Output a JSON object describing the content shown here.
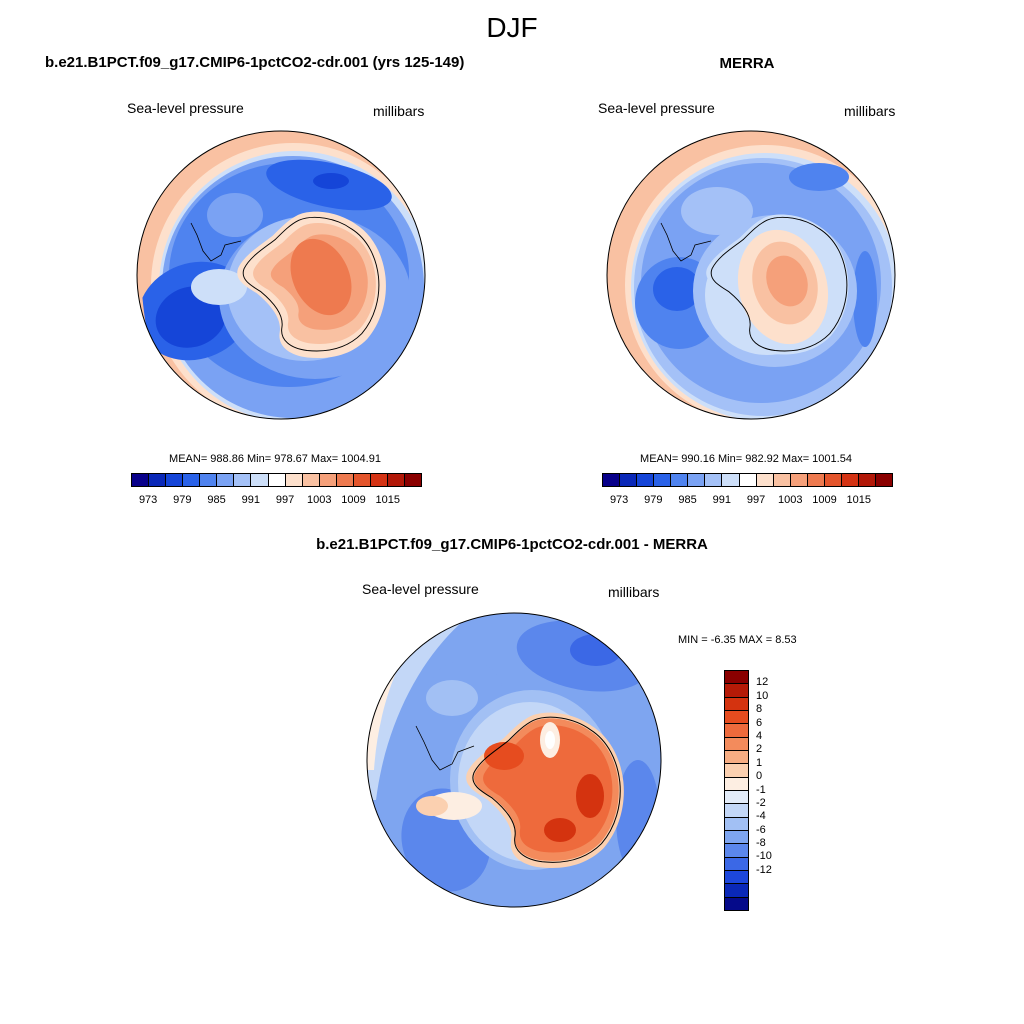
{
  "figure_title": "DJF",
  "colors": {
    "abs_scale": [
      "#08008a",
      "#0a28b8",
      "#1545d8",
      "#2a62e8",
      "#4f83ef",
      "#7aa2f3",
      "#a4c1f7",
      "#cddff9",
      "#ffffff",
      "#fde0cc",
      "#f9c1a2",
      "#f5a07a",
      "#ee7a4f",
      "#e4552c",
      "#d43314",
      "#b21808",
      "#8a0000"
    ],
    "diff_scale": [
      "#8a0000",
      "#b51a07",
      "#d4330f",
      "#e64c1f",
      "#ee6a3c",
      "#f38b5c",
      "#f7ad83",
      "#fbd0b0",
      "#fdeee2",
      "#e3ecf9",
      "#c3d7f7",
      "#a2c0f4",
      "#7ea5f0",
      "#5b87ec",
      "#3b68e6",
      "#1d47dc",
      "#0a28b8",
      "#050a8a"
    ]
  },
  "panels": {
    "model": {
      "title": "b.e21.B1PCT.f09_g17.CMIP6-1pctCO2-cdr.001 (yrs 125-149)",
      "left_label": "Sea-level pressure",
      "right_label": "millibars",
      "stats": "MEAN= 988.86  Min= 978.67  Max= 1004.91"
    },
    "obs": {
      "title": "MERRA",
      "left_label": "Sea-level pressure",
      "right_label": "millibars",
      "stats": "MEAN= 990.16  Min= 982.92  Max= 1001.54"
    },
    "diff": {
      "title": "b.e21.B1PCT.f09_g17.CMIP6-1pctCO2-cdr.001 - MERRA",
      "left_label": "Sea-level pressure",
      "right_label": "millibars",
      "stats": "MIN =  -6.35 MAX =   8.53"
    }
  },
  "abs_colorbar_ticks": [
    "973",
    "979",
    "985",
    "991",
    "997",
    "1003",
    "1009",
    "1015"
  ],
  "diff_colorbar_ticks": [
    "12",
    "10",
    "8",
    "6",
    "4",
    "2",
    "1",
    "0",
    "-1",
    "-2",
    "-4",
    "-6",
    "-8",
    "-10",
    "-12"
  ],
  "chart_data": [
    {
      "type": "heatmap",
      "title": "b.e21.B1PCT.f09_g17.CMIP6-1pctCO2-cdr.001 (yrs 125-149)",
      "variable": "Sea-level pressure",
      "units": "millibars",
      "season": "DJF",
      "projection": "south polar stereographic",
      "mean": 988.86,
      "min": 978.67,
      "max": 1004.91,
      "contour_levels": [
        970,
        973,
        976,
        979,
        982,
        985,
        988,
        991,
        994,
        997,
        1000,
        1003,
        1006,
        1009,
        1012,
        1015
      ]
    },
    {
      "type": "heatmap",
      "title": "MERRA",
      "variable": "Sea-level pressure",
      "units": "millibars",
      "season": "DJF",
      "projection": "south polar stereographic",
      "mean": 990.16,
      "min": 982.92,
      "max": 1001.54,
      "contour_levels": [
        970,
        973,
        976,
        979,
        982,
        985,
        988,
        991,
        994,
        997,
        1000,
        1003,
        1006,
        1009,
        1012,
        1015
      ]
    },
    {
      "type": "heatmap",
      "title": "b.e21.B1PCT.f09_g17.CMIP6-1pctCO2-cdr.001 - MERRA",
      "variable": "Sea-level pressure",
      "units": "millibars",
      "season": "DJF",
      "projection": "south polar stereographic",
      "min": -6.35,
      "max": 8.53,
      "contour_levels": [
        -12,
        -10,
        -8,
        -6,
        -4,
        -2,
        -1,
        0,
        1,
        2,
        4,
        6,
        8,
        10,
        12
      ]
    }
  ]
}
